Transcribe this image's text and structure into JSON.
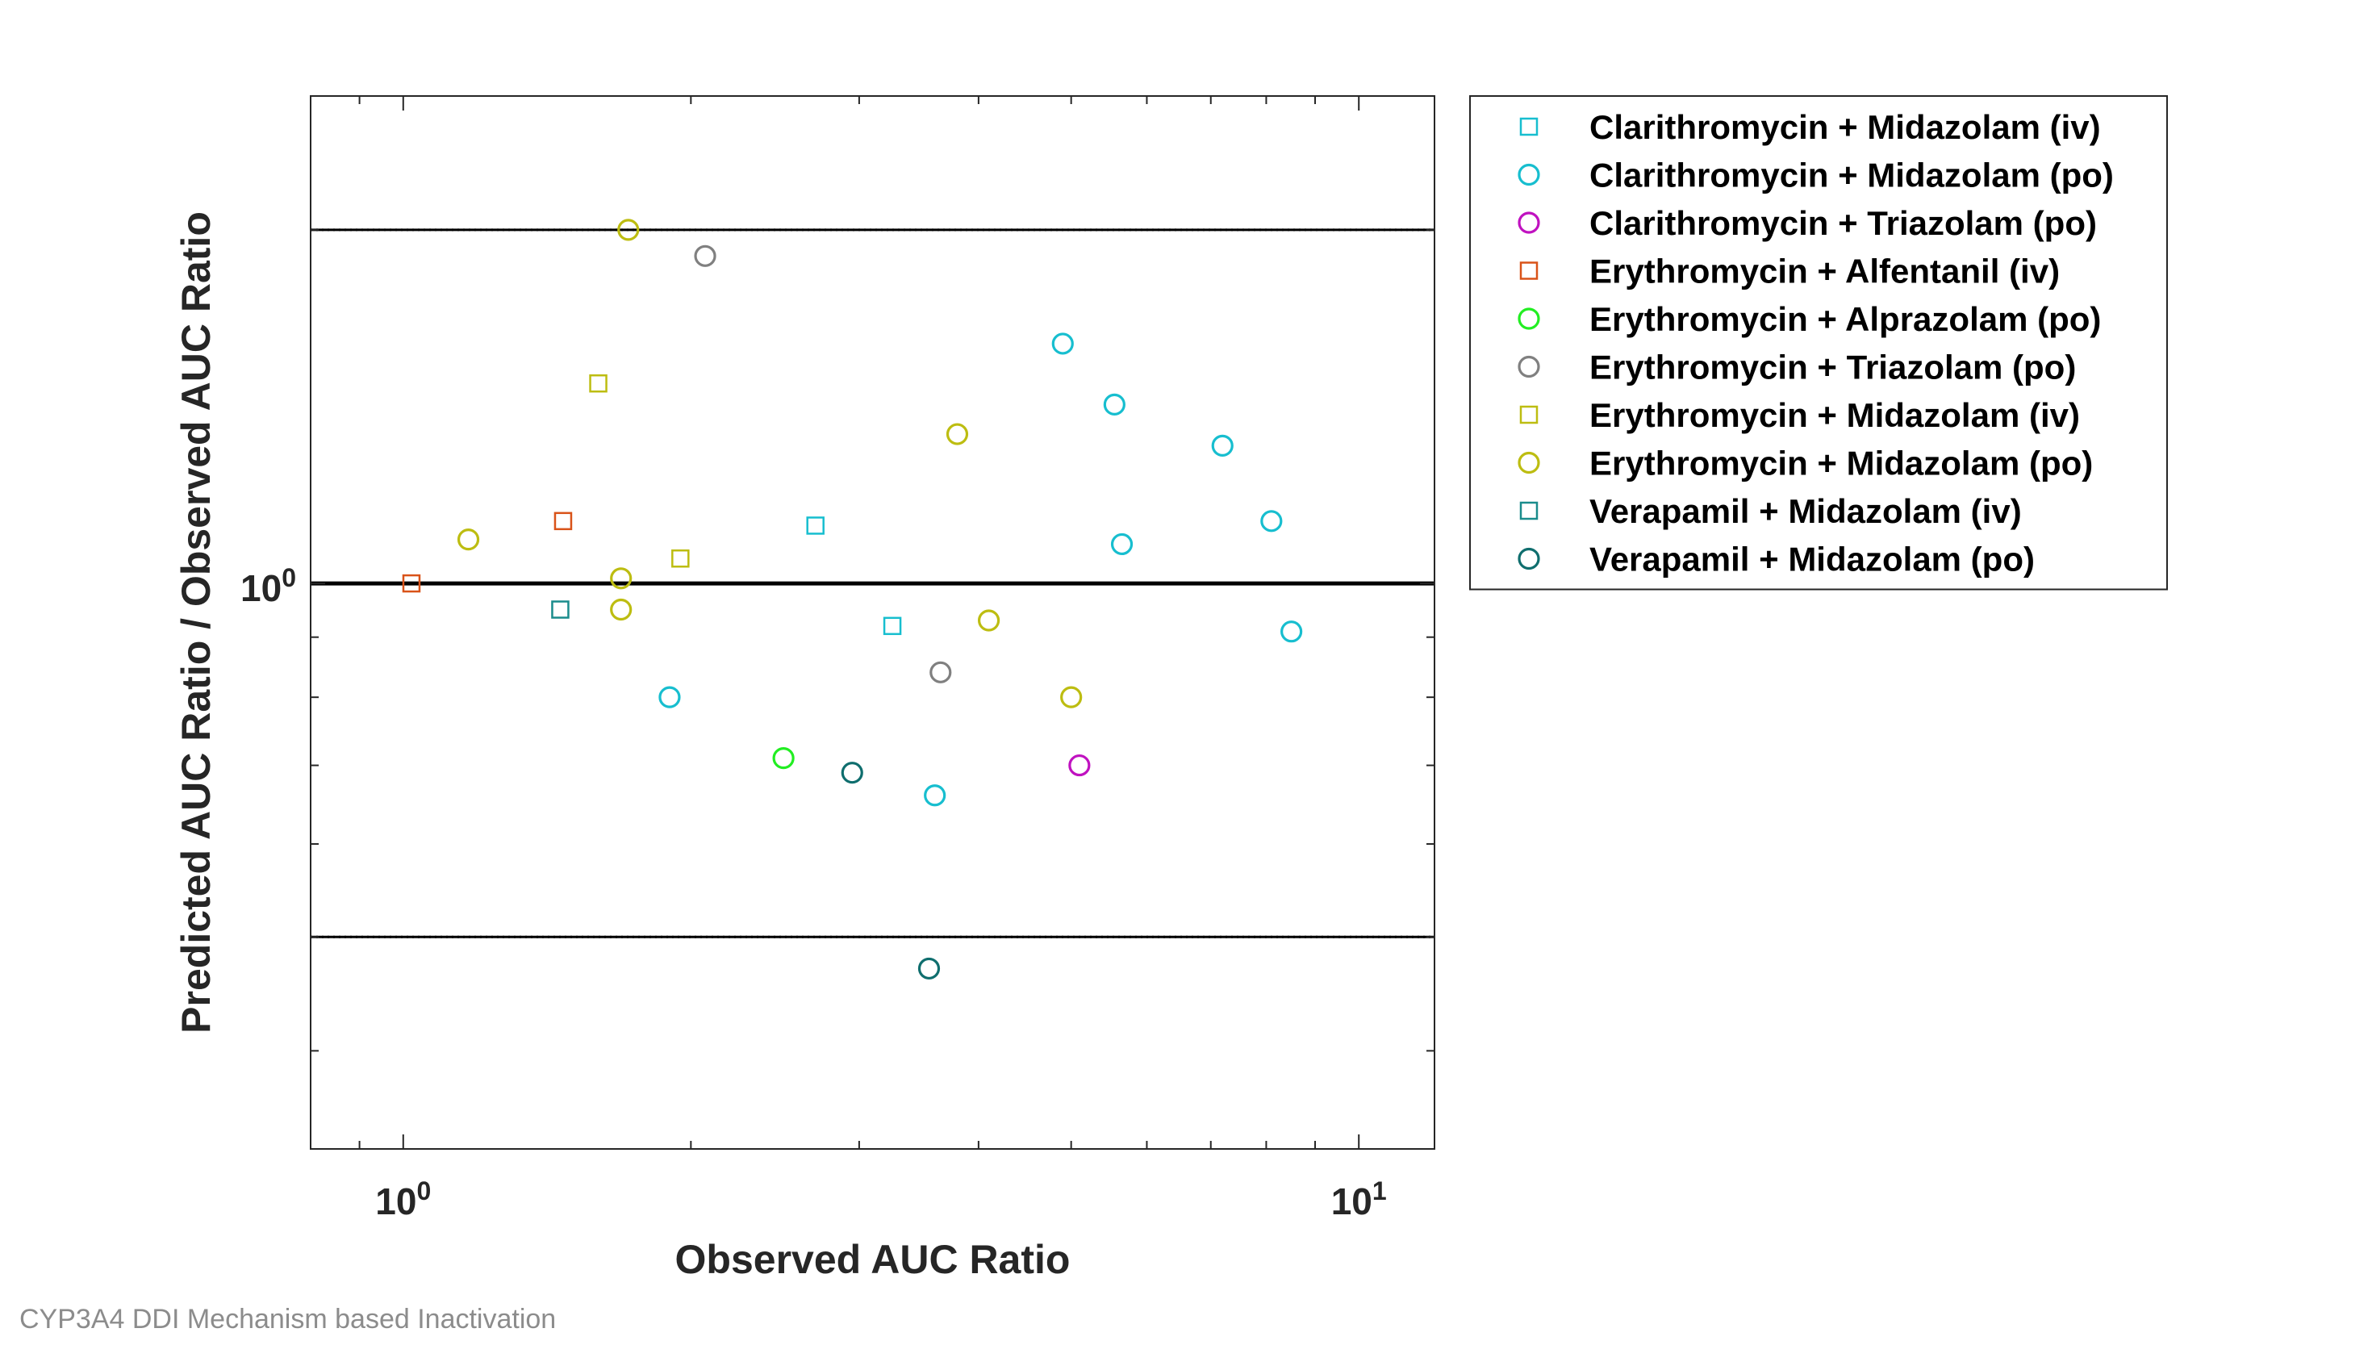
{
  "footer_text": "CYP3A4 DDI Mechanism based Inactivation",
  "chart_data": {
    "type": "scatter",
    "title": "",
    "xlabel": "Observed AUC Ratio",
    "ylabel": "Predicted AUC Ratio / Observed AUC Ratio",
    "x_scale": "log",
    "y_scale": "log",
    "xlim": [
      0.8,
      12
    ],
    "ylim": [
      0.33,
      2.6
    ],
    "x_ticks": [
      {
        "value": 1,
        "base": "10",
        "exp": "0"
      },
      {
        "value": 10,
        "base": "10",
        "exp": "1"
      }
    ],
    "y_ticks": [
      {
        "value": 1,
        "base": "10",
        "exp": "0"
      }
    ],
    "grid": false,
    "legend_position": "outside-right",
    "reference_lines": {
      "unity": 1,
      "fold_limits": [
        0.5,
        2
      ],
      "guest_limit_delta": 2
    },
    "series": [
      {
        "name": "Clarithromycin + Midazolam (iv)",
        "marker": "square",
        "color": "#17BECF",
        "points": [
          [
            2.7,
            1.12
          ],
          [
            3.25,
            0.92
          ]
        ]
      },
      {
        "name": "Clarithromycin + Midazolam (po)",
        "marker": "circle",
        "color": "#17BECF",
        "points": [
          [
            1.9,
            0.8
          ],
          [
            3.6,
            0.66
          ],
          [
            4.9,
            1.6
          ],
          [
            5.55,
            1.42
          ],
          [
            5.65,
            1.08
          ],
          [
            7.2,
            1.31
          ],
          [
            8.1,
            1.13
          ],
          [
            8.5,
            0.91
          ]
        ]
      },
      {
        "name": "Clarithromycin + Triazolam (po)",
        "marker": "circle",
        "color": "#C012C0",
        "points": [
          [
            5.1,
            0.7
          ]
        ]
      },
      {
        "name": "Erythromycin + Alfentanil (iv)",
        "marker": "square",
        "color": "#D95319",
        "points": [
          [
            1.02,
            1.0
          ],
          [
            1.47,
            1.13
          ]
        ]
      },
      {
        "name": "Erythromycin + Alprazolam (po)",
        "marker": "circle",
        "color": "#22EE22",
        "points": [
          [
            2.5,
            0.71
          ]
        ]
      },
      {
        "name": "Erythromycin + Triazolam (po)",
        "marker": "circle",
        "color": "#808080",
        "points": [
          [
            2.07,
            1.9
          ],
          [
            3.65,
            0.84
          ]
        ]
      },
      {
        "name": "Erythromycin + Midazolam (iv)",
        "marker": "square",
        "color": "#BDBD11",
        "points": [
          [
            1.6,
            1.48
          ],
          [
            1.95,
            1.05
          ]
        ]
      },
      {
        "name": "Erythromycin + Midazolam (po)",
        "marker": "circle",
        "color": "#BDBD11",
        "points": [
          [
            1.17,
            1.09
          ],
          [
            1.69,
            1.01
          ],
          [
            1.69,
            0.95
          ],
          [
            1.72,
            2.0
          ],
          [
            3.8,
            1.34
          ],
          [
            4.1,
            0.93
          ],
          [
            5.0,
            0.8
          ]
        ]
      },
      {
        "name": "Verapamil + Midazolam (iv)",
        "marker": "square",
        "color": "#1A8C8C",
        "points": [
          [
            1.46,
            0.95
          ]
        ]
      },
      {
        "name": "Verapamil + Midazolam (po)",
        "marker": "circle",
        "color": "#0F6E6E",
        "points": [
          [
            2.95,
            0.69
          ],
          [
            3.55,
            0.47
          ]
        ]
      }
    ]
  }
}
